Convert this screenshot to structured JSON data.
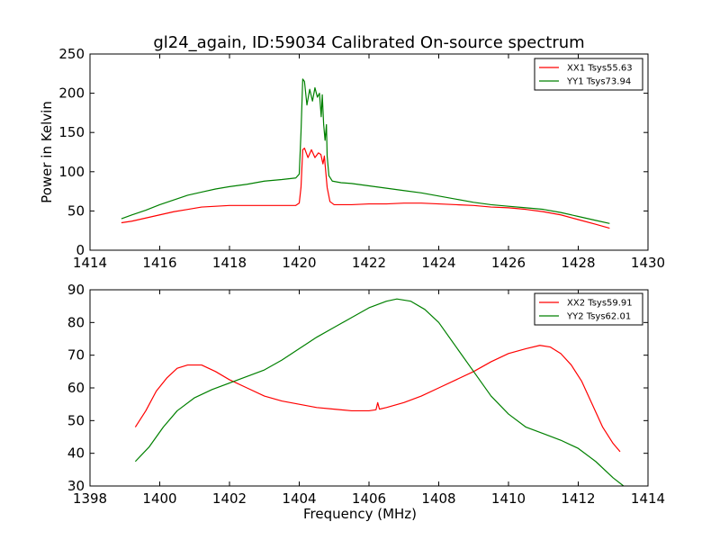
{
  "title": "gl24_again, ID:59034 Calibrated On-source spectrum",
  "colors": {
    "xx": "#ff0000",
    "yy": "#008000"
  },
  "chart_data": [
    {
      "type": "line",
      "ylabel": "Power in Kelvin",
      "xlabel": "",
      "xlim": [
        1414,
        1430
      ],
      "ylim": [
        0,
        250
      ],
      "xticks": [
        1414,
        1416,
        1418,
        1420,
        1422,
        1424,
        1426,
        1428,
        1430
      ],
      "yticks": [
        0,
        50,
        100,
        150,
        200,
        250
      ],
      "legend_position": "top-right",
      "series": [
        {
          "name": "XX1 Tsys55.63",
          "color": "#ff0000",
          "points": [
            [
              1414.9,
              35
            ],
            [
              1415.2,
              37
            ],
            [
              1415.6,
              41
            ],
            [
              1416.0,
              45
            ],
            [
              1416.4,
              49
            ],
            [
              1416.8,
              52
            ],
            [
              1417.2,
              55
            ],
            [
              1417.6,
              56
            ],
            [
              1418.0,
              57
            ],
            [
              1418.5,
              57
            ],
            [
              1419.0,
              57
            ],
            [
              1419.5,
              57
            ],
            [
              1419.9,
              57
            ],
            [
              1420.0,
              60
            ],
            [
              1420.05,
              80
            ],
            [
              1420.1,
              128
            ],
            [
              1420.15,
              130
            ],
            [
              1420.25,
              118
            ],
            [
              1420.35,
              128
            ],
            [
              1420.45,
              118
            ],
            [
              1420.55,
              124
            ],
            [
              1420.62,
              122
            ],
            [
              1420.68,
              110
            ],
            [
              1420.72,
              120
            ],
            [
              1420.76,
              100
            ],
            [
              1420.8,
              80
            ],
            [
              1420.88,
              62
            ],
            [
              1421.0,
              58
            ],
            [
              1421.5,
              58
            ],
            [
              1422.0,
              59
            ],
            [
              1422.5,
              59
            ],
            [
              1423.0,
              60
            ],
            [
              1423.5,
              60
            ],
            [
              1424.0,
              59
            ],
            [
              1424.5,
              58
            ],
            [
              1425.0,
              57
            ],
            [
              1425.5,
              55
            ],
            [
              1426.0,
              54
            ],
            [
              1426.5,
              52
            ],
            [
              1427.0,
              49
            ],
            [
              1427.5,
              45
            ],
            [
              1428.0,
              39
            ],
            [
              1428.5,
              33
            ],
            [
              1428.9,
              28
            ]
          ]
        },
        {
          "name": "YY1 Tsys73.94",
          "color": "#008000",
          "points": [
            [
              1414.9,
              40
            ],
            [
              1415.2,
              45
            ],
            [
              1415.6,
              51
            ],
            [
              1416.0,
              58
            ],
            [
              1416.4,
              64
            ],
            [
              1416.8,
              70
            ],
            [
              1417.2,
              74
            ],
            [
              1417.6,
              78
            ],
            [
              1418.0,
              81
            ],
            [
              1418.5,
              84
            ],
            [
              1419.0,
              88
            ],
            [
              1419.5,
              90
            ],
            [
              1419.9,
              92
            ],
            [
              1420.0,
              97
            ],
            [
              1420.05,
              150
            ],
            [
              1420.1,
              218
            ],
            [
              1420.15,
              215
            ],
            [
              1420.22,
              185
            ],
            [
              1420.3,
              205
            ],
            [
              1420.38,
              190
            ],
            [
              1420.45,
              207
            ],
            [
              1420.52,
              195
            ],
            [
              1420.58,
              200
            ],
            [
              1420.63,
              170
            ],
            [
              1420.66,
              198
            ],
            [
              1420.7,
              160
            ],
            [
              1420.74,
              140
            ],
            [
              1420.78,
              160
            ],
            [
              1420.8,
              120
            ],
            [
              1420.85,
              95
            ],
            [
              1420.95,
              88
            ],
            [
              1421.2,
              86
            ],
            [
              1421.5,
              85
            ],
            [
              1422.0,
              82
            ],
            [
              1422.5,
              79
            ],
            [
              1423.0,
              76
            ],
            [
              1423.5,
              73
            ],
            [
              1424.0,
              69
            ],
            [
              1424.5,
              65
            ],
            [
              1425.0,
              61
            ],
            [
              1425.5,
              58
            ],
            [
              1426.0,
              56
            ],
            [
              1426.5,
              54
            ],
            [
              1427.0,
              52
            ],
            [
              1427.5,
              48
            ],
            [
              1428.0,
              43
            ],
            [
              1428.5,
              38
            ],
            [
              1428.9,
              34
            ]
          ]
        }
      ]
    },
    {
      "type": "line",
      "xlabel": "Frequency (MHz)",
      "ylabel": "",
      "xlim": [
        1398,
        1414
      ],
      "ylim": [
        30,
        90
      ],
      "xticks": [
        1398,
        1400,
        1402,
        1404,
        1406,
        1408,
        1410,
        1412,
        1414
      ],
      "yticks": [
        30,
        40,
        50,
        60,
        70,
        80,
        90
      ],
      "legend_position": "top-right",
      "series": [
        {
          "name": "XX2 Tsys59.91",
          "color": "#ff0000",
          "points": [
            [
              1399.3,
              48
            ],
            [
              1399.6,
              53
            ],
            [
              1399.9,
              59
            ],
            [
              1400.2,
              63
            ],
            [
              1400.5,
              66
            ],
            [
              1400.8,
              67
            ],
            [
              1401.2,
              67
            ],
            [
              1401.6,
              65
            ],
            [
              1402.0,
              62.5
            ],
            [
              1402.5,
              60
            ],
            [
              1403.0,
              57.5
            ],
            [
              1403.5,
              56
            ],
            [
              1404.0,
              55
            ],
            [
              1404.5,
              54
            ],
            [
              1405.0,
              53.5
            ],
            [
              1405.5,
              53
            ],
            [
              1406.0,
              53
            ],
            [
              1406.2,
              53.3
            ],
            [
              1406.25,
              55.5
            ],
            [
              1406.3,
              53.5
            ],
            [
              1406.5,
              54
            ],
            [
              1407.0,
              55.5
            ],
            [
              1407.5,
              57.5
            ],
            [
              1408.0,
              60
            ],
            [
              1408.5,
              62.5
            ],
            [
              1409.0,
              65
            ],
            [
              1409.5,
              68
            ],
            [
              1410.0,
              70.5
            ],
            [
              1410.5,
              72
            ],
            [
              1410.9,
              73
            ],
            [
              1411.2,
              72.5
            ],
            [
              1411.5,
              70.5
            ],
            [
              1411.8,
              67
            ],
            [
              1412.1,
              62
            ],
            [
              1412.4,
              55
            ],
            [
              1412.7,
              48
            ],
            [
              1413.0,
              43
            ],
            [
              1413.2,
              40.5
            ]
          ]
        },
        {
          "name": "YY2 Tsys62.01",
          "color": "#008000",
          "points": [
            [
              1399.3,
              37.5
            ],
            [
              1399.7,
              42
            ],
            [
              1400.1,
              48
            ],
            [
              1400.5,
              53
            ],
            [
              1401.0,
              57
            ],
            [
              1401.5,
              59.5
            ],
            [
              1402.0,
              61.5
            ],
            [
              1402.5,
              63.5
            ],
            [
              1403.0,
              65.5
            ],
            [
              1403.5,
              68.5
            ],
            [
              1404.0,
              72
            ],
            [
              1404.5,
              75.5
            ],
            [
              1405.0,
              78.5
            ],
            [
              1405.5,
              81.5
            ],
            [
              1406.0,
              84.5
            ],
            [
              1406.5,
              86.5
            ],
            [
              1406.8,
              87.2
            ],
            [
              1407.2,
              86.5
            ],
            [
              1407.6,
              84
            ],
            [
              1408.0,
              80
            ],
            [
              1408.5,
              72.5
            ],
            [
              1409.0,
              65
            ],
            [
              1409.5,
              57.5
            ],
            [
              1410.0,
              52
            ],
            [
              1410.5,
              48
            ],
            [
              1411.0,
              46
            ],
            [
              1411.5,
              44
            ],
            [
              1412.0,
              41.5
            ],
            [
              1412.5,
              37.5
            ],
            [
              1413.0,
              32.5
            ],
            [
              1413.3,
              30
            ]
          ]
        }
      ]
    }
  ]
}
